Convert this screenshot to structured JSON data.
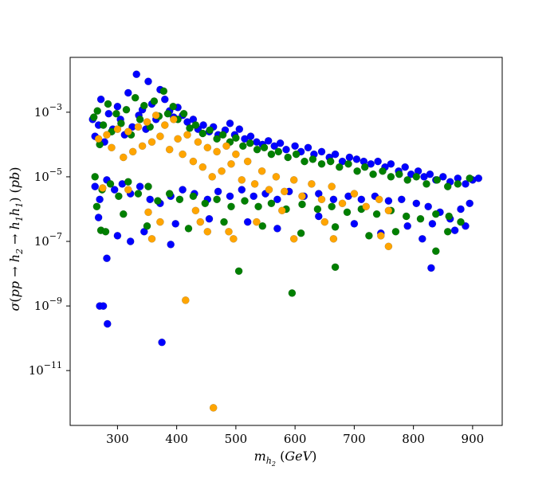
{
  "chart_data": {
    "type": "scatter",
    "title": "",
    "xlabel": "m_{h_2} (GeV)",
    "ylabel": "σ(pp → h_2 → h_1 h_1) (pb)",
    "xlim": [
      220,
      950
    ],
    "ylim": [
      2e-13,
      0.05
    ],
    "yscale": "log",
    "grid": false,
    "legend": "none",
    "x_ticks": [
      300,
      400,
      500,
      600,
      700,
      800,
      900
    ],
    "x_tick_labels": [
      "300",
      "400",
      "500",
      "600",
      "700",
      "800",
      "900"
    ],
    "y_ticks": [
      1e-11,
      1e-09,
      1e-07,
      1e-05,
      0.001
    ],
    "y_tick_labels": [
      "10^{-11}",
      "10^{-9}",
      "10^{-7}",
      "10^{-5}",
      "10^{-3}"
    ],
    "series": [
      {
        "color": "#0000ff",
        "points": [
          [
            258,
            0.0006
          ],
          [
            262,
            0.00018
          ],
          [
            268,
            0.0004
          ],
          [
            272,
            0.0025
          ],
          [
            278,
            0.00012
          ],
          [
            285,
            0.0009
          ],
          [
            292,
            0.0003
          ],
          [
            300,
            0.0015
          ],
          [
            305,
            0.0006
          ],
          [
            312,
            0.0002
          ],
          [
            318,
            0.004
          ],
          [
            325,
            0.00035
          ],
          [
            332,
            0.015
          ],
          [
            336,
            0.0008
          ],
          [
            342,
            0.0012
          ],
          [
            348,
            0.0003
          ],
          [
            352,
            0.009
          ],
          [
            358,
            0.0018
          ],
          [
            365,
            0.0006
          ],
          [
            372,
            0.005
          ],
          [
            380,
            0.0025
          ],
          [
            388,
            0.0011
          ],
          [
            395,
            0.0007
          ],
          [
            402,
            0.0014
          ],
          [
            410,
            0.0008
          ],
          [
            418,
            0.0005
          ],
          [
            428,
            0.0006
          ],
          [
            436,
            0.0003
          ],
          [
            445,
            0.0004
          ],
          [
            455,
            0.00025
          ],
          [
            462,
            0.00035
          ],
          [
            470,
            0.0002
          ],
          [
            482,
            0.00028
          ],
          [
            490,
            0.00045
          ],
          [
            498,
            0.0002
          ],
          [
            506,
            0.0003
          ],
          [
            515,
            0.00015
          ],
          [
            525,
            0.00018
          ],
          [
            535,
            0.00012
          ],
          [
            545,
            0.0001
          ],
          [
            555,
            0.00013
          ],
          [
            565,
            9e-05
          ],
          [
            575,
            0.00011
          ],
          [
            585,
            7e-05
          ],
          [
            600,
            9e-05
          ],
          [
            610,
            6e-05
          ],
          [
            622,
            8e-05
          ],
          [
            632,
            5e-05
          ],
          [
            645,
            6e-05
          ],
          [
            658,
            4e-05
          ],
          [
            668,
            5e-05
          ],
          [
            680,
            3e-05
          ],
          [
            692,
            4e-05
          ],
          [
            704,
            3.5e-05
          ],
          [
            716,
            3e-05
          ],
          [
            728,
            2.5e-05
          ],
          [
            740,
            3e-05
          ],
          [
            752,
            2e-05
          ],
          [
            762,
            2.5e-05
          ],
          [
            775,
            1.5e-05
          ],
          [
            786,
            2e-05
          ],
          [
            796,
            1.2e-05
          ],
          [
            808,
            1.5e-05
          ],
          [
            818,
            1e-05
          ],
          [
            828,
            1.2e-05
          ],
          [
            838,
            8e-06
          ],
          [
            850,
            1e-05
          ],
          [
            862,
            7e-06
          ],
          [
            875,
            9e-06
          ],
          [
            888,
            6e-06
          ],
          [
            900,
            8e-06
          ],
          [
            910,
            9e-06
          ],
          [
            262,
            5e-06
          ],
          [
            270,
            2e-06
          ],
          [
            282,
            8e-06
          ],
          [
            295,
            4e-06
          ],
          [
            308,
            6e-06
          ],
          [
            322,
            3e-06
          ],
          [
            338,
            5e-06
          ],
          [
            355,
            2e-06
          ],
          [
            372,
            1.5e-06
          ],
          [
            390,
            2.5e-06
          ],
          [
            410,
            4e-06
          ],
          [
            430,
            3e-06
          ],
          [
            452,
            2e-06
          ],
          [
            470,
            3.5e-06
          ],
          [
            490,
            2.5e-06
          ],
          [
            510,
            4e-06
          ],
          [
            530,
            2.5e-06
          ],
          [
            550,
            3e-06
          ],
          [
            570,
            2e-06
          ],
          [
            590,
            3.5e-06
          ],
          [
            615,
            2.5e-06
          ],
          [
            640,
            3e-06
          ],
          [
            665,
            2e-06
          ],
          [
            690,
            2.5e-06
          ],
          [
            712,
            2e-06
          ],
          [
            735,
            2.5e-06
          ],
          [
            758,
            1.8e-06
          ],
          [
            780,
            2e-06
          ],
          [
            805,
            1.5e-06
          ],
          [
            825,
            1.2e-06
          ],
          [
            845,
            8e-07
          ],
          [
            862,
            5e-07
          ],
          [
            880,
            1e-06
          ],
          [
            895,
            1.5e-06
          ],
          [
            268,
            5.5e-07
          ],
          [
            300,
            1.5e-07
          ],
          [
            345,
            2e-07
          ],
          [
            398,
            3.5e-07
          ],
          [
            455,
            5e-07
          ],
          [
            520,
            4e-07
          ],
          [
            570,
            2.5e-07
          ],
          [
            640,
            6e-07
          ],
          [
            700,
            3.5e-07
          ],
          [
            745,
            1.8e-07
          ],
          [
            790,
            3e-07
          ],
          [
            815,
            1.2e-07
          ],
          [
            832,
            3.5e-07
          ],
          [
            870,
            2.2e-07
          ],
          [
            888,
            3e-07
          ],
          [
            282,
            3e-08
          ],
          [
            322,
            1e-07
          ],
          [
            390,
            8e-08
          ],
          [
            830,
            1.5e-08
          ],
          [
            270,
            1e-09
          ],
          [
            276,
            1e-09
          ],
          [
            283,
            2.8e-10
          ],
          [
            375,
            7.5e-11
          ]
        ]
      },
      {
        "color": "#008000",
        "points": [
          [
            260,
            0.0007
          ],
          [
            266,
            0.0011
          ],
          [
            270,
            0.0001
          ],
          [
            276,
            0.0004
          ],
          [
            284,
            0.0018
          ],
          [
            290,
            0.00025
          ],
          [
            298,
            0.0009
          ],
          [
            306,
            0.00045
          ],
          [
            315,
            0.0012
          ],
          [
            323,
            0.0002
          ],
          [
            330,
            0.0028
          ],
          [
            338,
            0.0006
          ],
          [
            345,
            0.0016
          ],
          [
            355,
            0.00035
          ],
          [
            362,
            0.0022
          ],
          [
            370,
            0.00075
          ],
          [
            378,
            0.0045
          ],
          [
            385,
            0.0009
          ],
          [
            394,
            0.0015
          ],
          [
            402,
            0.0006
          ],
          [
            412,
            0.0009
          ],
          [
            422,
            0.00032
          ],
          [
            432,
            0.0004
          ],
          [
            444,
            0.00022
          ],
          [
            456,
            0.00028
          ],
          [
            468,
            0.00015
          ],
          [
            478,
            0.0002
          ],
          [
            490,
            0.00012
          ],
          [
            500,
            0.00016
          ],
          [
            512,
            9e-05
          ],
          [
            524,
            0.00011
          ],
          [
            536,
            7e-05
          ],
          [
            548,
            8e-05
          ],
          [
            560,
            5e-05
          ],
          [
            572,
            6e-05
          ],
          [
            588,
            4e-05
          ],
          [
            602,
            5e-05
          ],
          [
            616,
            3e-05
          ],
          [
            630,
            3.5e-05
          ],
          [
            645,
            2.5e-05
          ],
          [
            660,
            3e-05
          ],
          [
            675,
            2e-05
          ],
          [
            690,
            2.5e-05
          ],
          [
            705,
            1.5e-05
          ],
          [
            718,
            2e-05
          ],
          [
            732,
            1.2e-05
          ],
          [
            748,
            1.5e-05
          ],
          [
            762,
            1e-05
          ],
          [
            776,
            1.2e-05
          ],
          [
            790,
            8e-06
          ],
          [
            805,
            1e-05
          ],
          [
            822,
            6e-06
          ],
          [
            840,
            8e-06
          ],
          [
            858,
            5e-06
          ],
          [
            875,
            6e-06
          ],
          [
            895,
            9e-06
          ],
          [
            262,
            1e-05
          ],
          [
            274,
            4e-06
          ],
          [
            288,
            6e-06
          ],
          [
            302,
            2.5e-06
          ],
          [
            318,
            7e-06
          ],
          [
            335,
            3e-06
          ],
          [
            352,
            5e-06
          ],
          [
            368,
            1.8e-06
          ],
          [
            388,
            3e-06
          ],
          [
            405,
            2e-06
          ],
          [
            428,
            2.5e-06
          ],
          [
            448,
            1.5e-06
          ],
          [
            468,
            2e-06
          ],
          [
            492,
            1.2e-06
          ],
          [
            515,
            1.8e-06
          ],
          [
            538,
            1.2e-06
          ],
          [
            560,
            1.5e-06
          ],
          [
            585,
            1e-06
          ],
          [
            612,
            1.4e-06
          ],
          [
            638,
            1e-06
          ],
          [
            662,
            1.2e-06
          ],
          [
            688,
            8e-07
          ],
          [
            712,
            1e-06
          ],
          [
            738,
            7e-07
          ],
          [
            762,
            9e-07
          ],
          [
            788,
            6e-07
          ],
          [
            812,
            5e-07
          ],
          [
            838,
            7e-07
          ],
          [
            860,
            6e-07
          ],
          [
            880,
            4e-07
          ],
          [
            265,
            1.2e-06
          ],
          [
            272,
            2.2e-07
          ],
          [
            280,
            2e-07
          ],
          [
            310,
            7e-07
          ],
          [
            350,
            3e-07
          ],
          [
            420,
            2.5e-07
          ],
          [
            480,
            4e-07
          ],
          [
            545,
            3e-07
          ],
          [
            610,
            1.8e-07
          ],
          [
            668,
            2.8e-07
          ],
          [
            725,
            1.5e-07
          ],
          [
            770,
            2e-07
          ],
          [
            838,
            5e-08
          ],
          [
            858,
            2e-07
          ],
          [
            505,
            1.2e-08
          ],
          [
            595,
            2.5e-09
          ],
          [
            668,
            1.6e-08
          ]
        ]
      },
      {
        "color": "#ffa500",
        "points": [
          [
            268,
            0.00015
          ],
          [
            275,
            4.5e-06
          ],
          [
            282,
            0.0002
          ],
          [
            290,
            8e-05
          ],
          [
            300,
            0.0003
          ],
          [
            310,
            4e-05
          ],
          [
            318,
            0.00025
          ],
          [
            326,
            6e-05
          ],
          [
            335,
            0.00035
          ],
          [
            342,
            9e-05
          ],
          [
            350,
            0.0005
          ],
          [
            358,
            0.00012
          ],
          [
            365,
            0.0008
          ],
          [
            372,
            0.00018
          ],
          [
            380,
            0.0004
          ],
          [
            388,
            7e-05
          ],
          [
            395,
            0.0006
          ],
          [
            402,
            0.00015
          ],
          [
            410,
            5e-05
          ],
          [
            418,
            0.0002
          ],
          [
            428,
            3e-05
          ],
          [
            436,
            0.00012
          ],
          [
            444,
            2e-05
          ],
          [
            452,
            8e-05
          ],
          [
            460,
            1e-05
          ],
          [
            468,
            6e-05
          ],
          [
            476,
            1.5e-05
          ],
          [
            484,
            9e-05
          ],
          [
            492,
            2.5e-05
          ],
          [
            500,
            5e-05
          ],
          [
            510,
            8e-06
          ],
          [
            520,
            3e-05
          ],
          [
            532,
            6e-06
          ],
          [
            544,
            1.5e-05
          ],
          [
            556,
            4e-06
          ],
          [
            568,
            1e-05
          ],
          [
            582,
            3.5e-06
          ],
          [
            598,
            8e-06
          ],
          [
            612,
            2.5e-06
          ],
          [
            628,
            6e-06
          ],
          [
            645,
            2e-06
          ],
          [
            662,
            5e-06
          ],
          [
            680,
            1.5e-06
          ],
          [
            700,
            3e-06
          ],
          [
            720,
            1.2e-06
          ],
          [
            742,
            2e-06
          ],
          [
            758,
            9e-07
          ],
          [
            318,
            4e-06
          ],
          [
            352,
            8e-07
          ],
          [
            358,
            1.2e-07
          ],
          [
            372,
            4e-07
          ],
          [
            432,
            9e-07
          ],
          [
            440,
            4e-07
          ],
          [
            452,
            2e-07
          ],
          [
            488,
            2e-07
          ],
          [
            496,
            1.2e-07
          ],
          [
            535,
            4e-07
          ],
          [
            578,
            9e-07
          ],
          [
            598,
            1.2e-07
          ],
          [
            650,
            4e-07
          ],
          [
            665,
            1.2e-07
          ],
          [
            745,
            1.5e-07
          ],
          [
            758,
            7e-08
          ],
          [
            415,
            1.5e-09
          ],
          [
            462,
            7e-13
          ]
        ]
      }
    ]
  }
}
